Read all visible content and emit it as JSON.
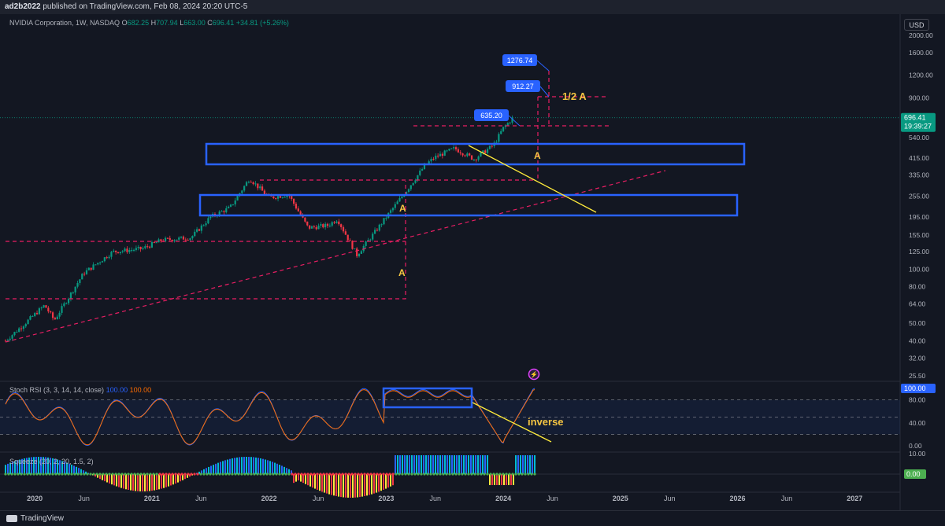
{
  "header": {
    "user": "ad2b2022",
    "published_text": "published on TradingView.com, Feb 08, 2024 20:20 UTC-5"
  },
  "symbol_info": {
    "name": "NVIDIA Corporation, 1W, NASDAQ",
    "o_label": "O",
    "o": "682.25",
    "h_label": "H",
    "h": "707.94",
    "l_label": "L",
    "l": "663.00",
    "c_label": "C",
    "c": "696.41",
    "change": "+34.81 (+5.26%)"
  },
  "currency_button": "USD",
  "price_axis": {
    "ticks": [
      "2000.00",
      "1600.00",
      "1200.00",
      "900.00",
      "700.00",
      "540.00",
      "415.00",
      "335.00",
      "255.00",
      "195.00",
      "155.00",
      "125.00",
      "100.00",
      "80.00",
      "64.00",
      "50.00",
      "40.00",
      "32.00",
      "25.50"
    ],
    "last_price": "696.41",
    "countdown": "19:39:27"
  },
  "time_axis": {
    "labels": [
      "2020",
      "Jun",
      "2021",
      "Jun",
      "2022",
      "Jun",
      "2023",
      "Jun",
      "2024",
      "Jun",
      "2025",
      "Jun",
      "2026",
      "Jun",
      "2027"
    ]
  },
  "annotations": {
    "price_targets": [
      "1276.74",
      "912.27",
      "635.20"
    ],
    "half_a": "1/2 A",
    "a_markers": [
      "A",
      "A",
      "A"
    ],
    "inverse": "inverse"
  },
  "stoch_rsi": {
    "label": "Stoch RSI (3, 3, 14, 14, close)",
    "k_value": "100.00",
    "d_value": "100.00",
    "axis_ticks": [
      "100.00",
      "80.00",
      "40.00",
      "0.00"
    ],
    "badge": "100.00"
  },
  "squeeze": {
    "label": "Squeeze (20, 2, 20, 1.5, 2)",
    "axis_ticks": [
      "10.00"
    ],
    "badge": "0.00"
  },
  "footer": {
    "brand": "TradingView"
  },
  "colors": {
    "background": "#131722",
    "up": "#089981",
    "down": "#f23645",
    "box": "#2962ff",
    "dashed": "#e91e63",
    "trend": "#ffeb3b",
    "stoch_k": "#2962ff",
    "stoch_d": "#ff6d00",
    "squeeze_lightblue": "#00bcd4",
    "squeeze_blue": "#2962ff",
    "squeeze_red": "#f23645",
    "squeeze_yellow": "#ffeb3b",
    "squeeze_green": "#4caf50"
  },
  "chart_data": {
    "type": "candlestick",
    "title": "NVIDIA Corporation, 1W, NASDAQ",
    "y_scale": "log",
    "ylim": [
      25.5,
      2000
    ],
    "xlim": [
      "2019-10",
      "2027-03"
    ],
    "price_path": [
      [
        "2019-10",
        40
      ],
      [
        "2019-12",
        50
      ],
      [
        "2020-02",
        63
      ],
      [
        "2020-03",
        52
      ],
      [
        "2020-06",
        95
      ],
      [
        "2020-09",
        125
      ],
      [
        "2020-12",
        130
      ],
      [
        "2021-02",
        145
      ],
      [
        "2021-05",
        150
      ],
      [
        "2021-07",
        195
      ],
      [
        "2021-09",
        220
      ],
      [
        "2021-11",
        320
      ],
      [
        "2022-01",
        250
      ],
      [
        "2022-03",
        260
      ],
      [
        "2022-05",
        170
      ],
      [
        "2022-07",
        175
      ],
      [
        "2022-08",
        190
      ],
      [
        "2022-10",
        120
      ],
      [
        "2022-12",
        165
      ],
      [
        "2023-01",
        195
      ],
      [
        "2023-03",
        270
      ],
      [
        "2023-05",
        380
      ],
      [
        "2023-06",
        420
      ],
      [
        "2023-08",
        470
      ],
      [
        "2023-10",
        410
      ],
      [
        "2023-12",
        490
      ],
      [
        "2024-01",
        610
      ],
      [
        "2024-02",
        696.41
      ]
    ],
    "last_close": 696.41,
    "price_targets": [
      1276.74,
      912.27,
      635.2
    ]
  }
}
